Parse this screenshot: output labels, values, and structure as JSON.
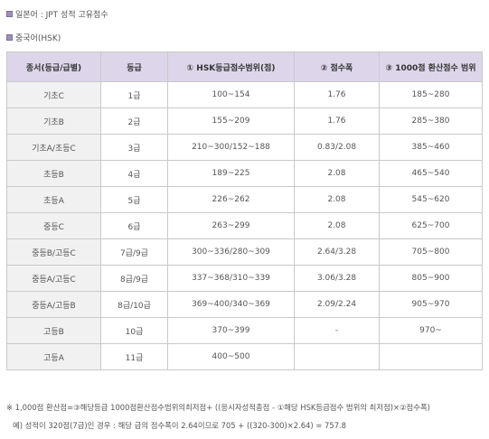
{
  "headings": {
    "jpt": "일본어 : JPT 성적 고유점수",
    "hsk": "중국어(HSK)"
  },
  "table": {
    "columns": [
      "종서(등급/급별)",
      "등급",
      "① HSK등급점수범위(점)",
      "② 점수폭",
      "③ 1000점 환산점수 범위"
    ],
    "rows": [
      [
        "기초C",
        "1급",
        "100~154",
        "1.76",
        "185~280"
      ],
      [
        "기초B",
        "2급",
        "155~209",
        "1.76",
        "285~380"
      ],
      [
        "기초A/초등C",
        "3급",
        "210~300/152~188",
        "0.83/2.08",
        "385~460"
      ],
      [
        "초등B",
        "4급",
        "189~225",
        "2.08",
        "465~540"
      ],
      [
        "초등A",
        "5급",
        "226~262",
        "2.08",
        "545~620"
      ],
      [
        "중등C",
        "6급",
        "263~299",
        "2.08",
        "625~700"
      ],
      [
        "중등B/고등C",
        "7급/9급",
        "300~336/280~309",
        "2.64/3.28",
        "705~800"
      ],
      [
        "중등A/고등C",
        "8급/9급",
        "337~368/310~339",
        "3.06/3.28",
        "805~900"
      ],
      [
        "중등A/고등B",
        "8급/10급",
        "369~400/340~369",
        "2.09/2.24",
        "905~970"
      ],
      [
        "고등B",
        "10급",
        "370~399",
        "-",
        "970~"
      ],
      [
        "고등A",
        "11급",
        "400~500",
        "",
        ""
      ]
    ]
  },
  "notes": {
    "formula": "※ 1,000점 환산점=③해당등급 1000점환산점수범위의최저점+ ((응시자성적총점 - ①해당 HSK등급점수 범위의 최저점)×②점수폭)",
    "example": "예) 성적이 320점(7급)인 경우 : 해당 급의 점수폭이 2.64이므로 705 + ((320-300)×2.64) = 757.8"
  }
}
